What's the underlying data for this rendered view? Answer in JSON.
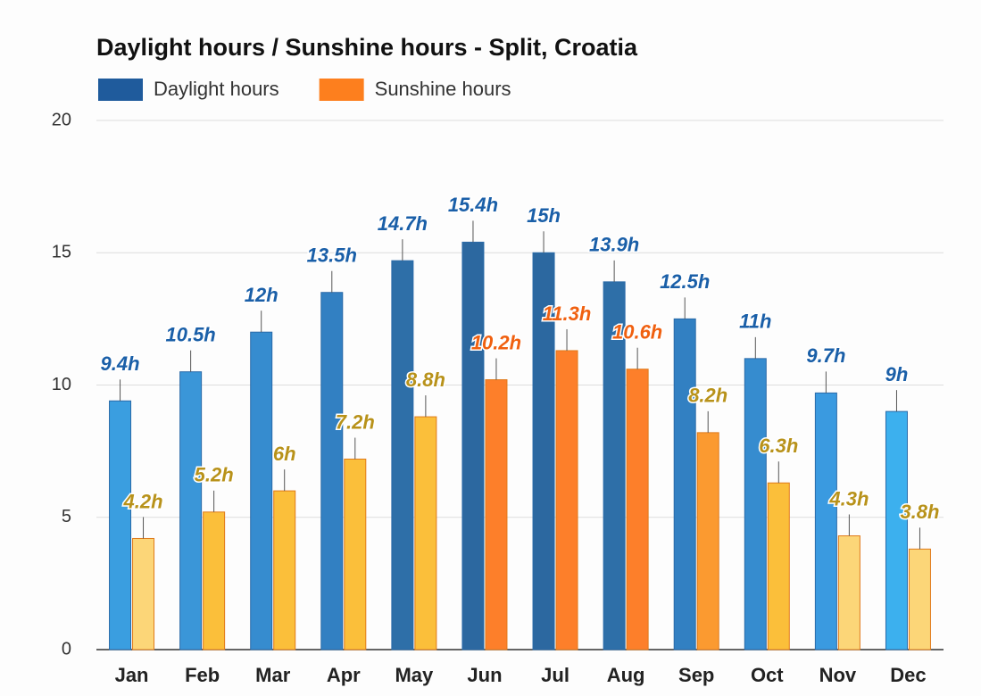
{
  "chart_data": {
    "type": "bar",
    "title": "Daylight hours / Sunshine hours - Split, Croatia",
    "categories": [
      "Jan",
      "Feb",
      "Mar",
      "Apr",
      "May",
      "Jun",
      "Jul",
      "Aug",
      "Sep",
      "Oct",
      "Nov",
      "Dec"
    ],
    "series": [
      {
        "name": "Daylight hours",
        "color": "#1f5b9c",
        "label_color": "#1a5fa8",
        "colors": [
          "#3a9ee0",
          "#3a96d8",
          "#368ccf",
          "#3280c2",
          "#2e6fa8",
          "#2c68a0",
          "#2c68a0",
          "#2e6fa8",
          "#3280c2",
          "#368ccf",
          "#3a9ae0",
          "#3cb0ee"
        ],
        "values": [
          9.4,
          10.5,
          12,
          13.5,
          14.7,
          15.4,
          15,
          13.9,
          12.5,
          11,
          9.7,
          9
        ],
        "value_labels": [
          "9.4h",
          "10.5h",
          "12h",
          "13.5h",
          "14.7h",
          "15.4h",
          "15h",
          "13.9h",
          "12.5h",
          "11h",
          "9.7h",
          "9h"
        ]
      },
      {
        "name": "Sunshine hours",
        "color": "#fd7f1e",
        "colors": [
          "#fcd678",
          "#fbbf3a",
          "#fbbf3a",
          "#fbbf3a",
          "#fbbf3a",
          "#fd7f2a",
          "#fd7f2a",
          "#fd7f2a",
          "#fb9a30",
          "#fbbf3a",
          "#fcd678",
          "#fcd678"
        ],
        "label_colors": [
          "#b8921a",
          "#b8921a",
          "#b8921a",
          "#b8921a",
          "#b8921a",
          "#f06010",
          "#f06010",
          "#f06010",
          "#b8921a",
          "#b8921a",
          "#b8921a",
          "#b8921a"
        ],
        "values": [
          4.2,
          5.2,
          6,
          7.2,
          8.8,
          10.2,
          11.3,
          10.6,
          8.2,
          6.3,
          4.3,
          3.8
        ],
        "value_labels": [
          "4.2h",
          "5.2h",
          "6h",
          "7.2h",
          "8.8h",
          "10.2h",
          "11.3h",
          "10.6h",
          "8.2h",
          "6.3h",
          "4.3h",
          "3.8h"
        ]
      }
    ],
    "ylim": [
      0,
      20
    ],
    "yticks": [
      0,
      5,
      10,
      15,
      20
    ],
    "grid": true
  }
}
